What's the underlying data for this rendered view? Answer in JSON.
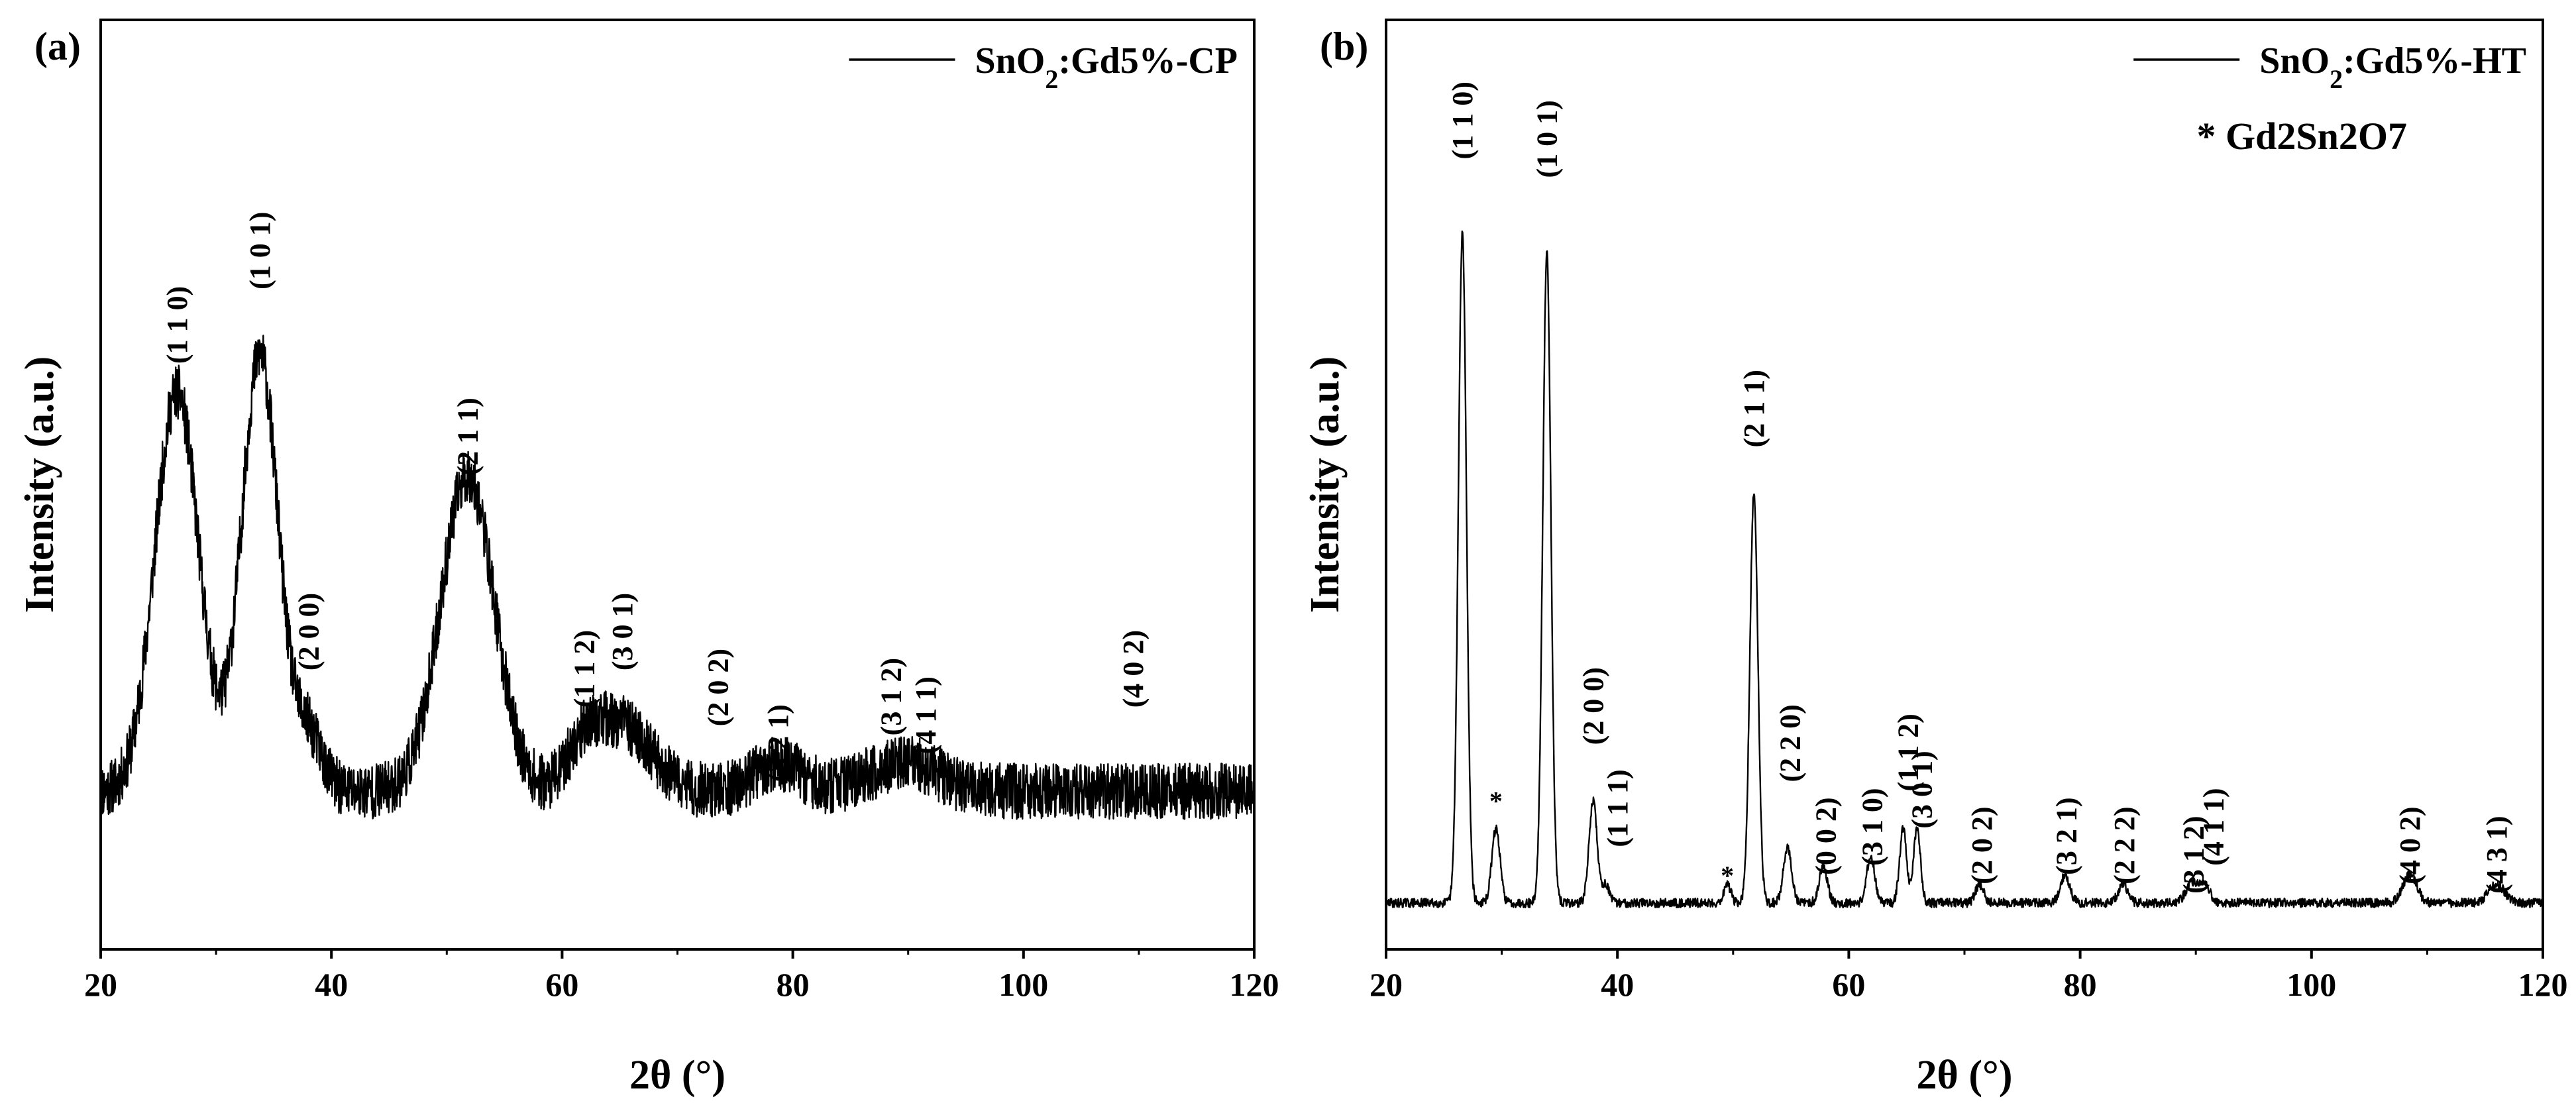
{
  "colors": {
    "line": "#000000",
    "background": "#ffffff"
  },
  "chart_data": [
    {
      "type": "line",
      "panel_label": "(a)",
      "title": "",
      "xlabel": "2θ (°)",
      "ylabel": "Intensity (a.u.)",
      "xlim": [
        20,
        120
      ],
      "ylim": [
        0,
        100
      ],
      "xticks": [
        20,
        40,
        60,
        80,
        100,
        120
      ],
      "grid": false,
      "legend": {
        "position": "top-right",
        "entries": [
          {
            "name": "SnO2:Gd5%-CP",
            "base": "SnO",
            "sub": "2",
            "rest": ":Gd5%-CP"
          }
        ]
      },
      "baseline": 17,
      "noise": 6,
      "series": [
        {
          "name": "SnO2:Gd5%-CP",
          "peaks": [
            {
              "center": 26.6,
              "height": 43,
              "width": 1.9
            },
            {
              "center": 33.8,
              "height": 47,
              "width": 1.6
            },
            {
              "center": 38.0,
              "height": 6,
              "width": 1.2
            },
            {
              "center": 51.8,
              "height": 34,
              "width": 2.3
            },
            {
              "center": 61.9,
              "height": 4,
              "width": 1.5
            },
            {
              "center": 65.2,
              "height": 7,
              "width": 2.5
            },
            {
              "center": 78.7,
              "height": 3,
              "width": 2.0
            },
            {
              "center": 89.6,
              "height": 3,
              "width": 3.0
            }
          ]
        }
      ],
      "annotations": [
        {
          "text": "(1 1 0)",
          "x": 26.6,
          "y": 63
        },
        {
          "text": "(1 0 1)",
          "x": 33.8,
          "y": 71
        },
        {
          "text": "(2 0 0)",
          "x": 38.0,
          "y": 30
        },
        {
          "text": "(2 1 1)",
          "x": 51.8,
          "y": 51
        },
        {
          "text": "(1 1 2)",
          "x": 61.9,
          "y": 26
        },
        {
          "text": "(3 0 1)",
          "x": 65.2,
          "y": 30
        },
        {
          "text": "(2 0 2)",
          "x": 73.5,
          "y": 24
        },
        {
          "text": "(3 2 1)",
          "x": 78.7,
          "y": 18
        },
        {
          "text": "(3 1 2)",
          "x": 88.5,
          "y": 23
        },
        {
          "text": "(4 1 1)",
          "x": 91.5,
          "y": 21
        },
        {
          "text": "(4 0 2)",
          "x": 109.5,
          "y": 26
        }
      ]
    },
    {
      "type": "line",
      "panel_label": "(b)",
      "title": "",
      "xlabel": "2θ (°)",
      "ylabel": "Intensity (a.u.)",
      "xlim": [
        20,
        120
      ],
      "ylim": [
        0,
        100
      ],
      "xticks": [
        20,
        40,
        60,
        80,
        100,
        120
      ],
      "grid": false,
      "legend": {
        "position": "top-right",
        "entries": [
          {
            "name": "SnO2:Gd5%-HT",
            "base": "SnO",
            "sub": "2",
            "rest": ":Gd5%-HT"
          }
        ]
      },
      "secondary_legend": "* Gd2Sn2O7",
      "baseline": 5,
      "noise": 1,
      "series": [
        {
          "name": "SnO2:Gd5%-HT",
          "peaks": [
            {
              "center": 26.6,
              "height": 72,
              "width": 0.35
            },
            {
              "center": 29.5,
              "height": 8,
              "width": 0.35
            },
            {
              "center": 33.9,
              "height": 70,
              "width": 0.35
            },
            {
              "center": 37.9,
              "height": 11,
              "width": 0.35
            },
            {
              "center": 39.0,
              "height": 2,
              "width": 0.3
            },
            {
              "center": 49.5,
              "height": 2,
              "width": 0.3
            },
            {
              "center": 51.8,
              "height": 44,
              "width": 0.35
            },
            {
              "center": 54.7,
              "height": 6,
              "width": 0.35
            },
            {
              "center": 57.8,
              "height": 4,
              "width": 0.35
            },
            {
              "center": 61.9,
              "height": 5,
              "width": 0.35
            },
            {
              "center": 64.7,
              "height": 8,
              "width": 0.3
            },
            {
              "center": 65.9,
              "height": 8,
              "width": 0.3
            },
            {
              "center": 71.3,
              "height": 2,
              "width": 0.35
            },
            {
              "center": 78.7,
              "height": 3,
              "width": 0.4
            },
            {
              "center": 83.7,
              "height": 2,
              "width": 0.4
            },
            {
              "center": 89.6,
              "height": 2,
              "width": 0.5
            },
            {
              "center": 90.7,
              "height": 2,
              "width": 0.5
            },
            {
              "center": 108.5,
              "height": 3,
              "width": 0.6
            },
            {
              "center": 116.0,
              "height": 2,
              "width": 0.7
            }
          ]
        }
      ],
      "annotations": [
        {
          "text": "(1 1 0)",
          "x": 26.6,
          "y": 85
        },
        {
          "text": "(1 0 1)",
          "x": 33.9,
          "y": 83
        },
        {
          "text": "(2 0 0)",
          "x": 37.9,
          "y": 22
        },
        {
          "text": "(1 1 1)",
          "x": 40.0,
          "y": 11
        },
        {
          "text": "(2 1 1)",
          "x": 51.8,
          "y": 54
        },
        {
          "text": "(2 2 0)",
          "x": 54.9,
          "y": 18
        },
        {
          "text": "(0 0 2)",
          "x": 58.0,
          "y": 8
        },
        {
          "text": "(3 1 0)",
          "x": 62.0,
          "y": 9
        },
        {
          "text": "(1 1 2)",
          "x": 65.1,
          "y": 17
        },
        {
          "text": "(3 0 1)",
          "x": 66.3,
          "y": 13
        },
        {
          "text": "(2 0 2)",
          "x": 71.5,
          "y": 7
        },
        {
          "text": "(3 2 1)",
          "x": 78.8,
          "y": 8
        },
        {
          "text": "(2 2 2)",
          "x": 83.8,
          "y": 7
        },
        {
          "text": "(3 1 2)",
          "x": 89.8,
          "y": 6
        },
        {
          "text": "(4 1 1)",
          "x": 91.5,
          "y": 9
        },
        {
          "text": "(4 0 2)",
          "x": 108.5,
          "y": 7
        },
        {
          "text": "(4 3 1)",
          "x": 116.0,
          "y": 6
        }
      ],
      "star_markers": [
        {
          "text": "*",
          "x": 29.5,
          "y": 15
        },
        {
          "text": "*",
          "x": 49.5,
          "y": 7
        }
      ]
    }
  ]
}
